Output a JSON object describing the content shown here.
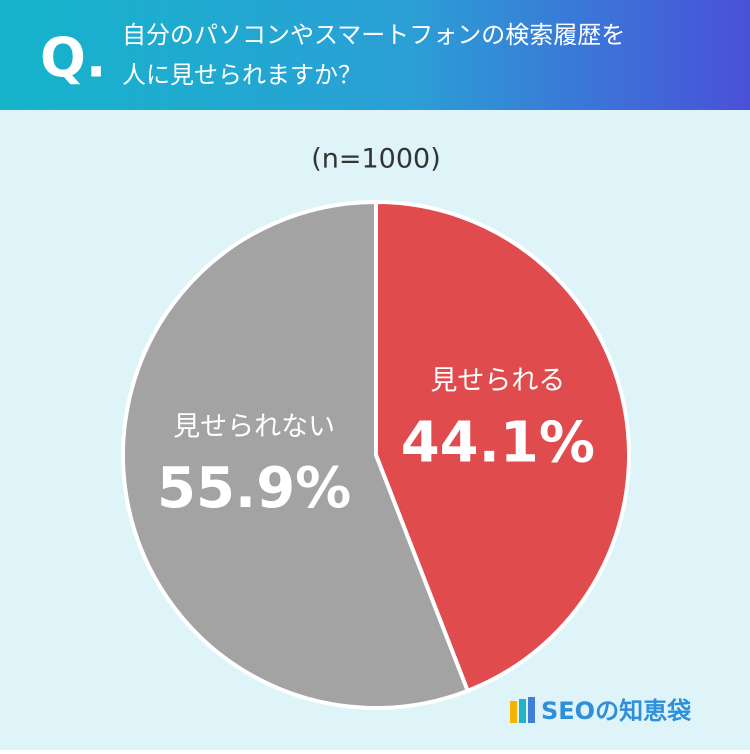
{
  "q_label": "Q.",
  "brand": "SEOの知恵袋",
  "chart_data": {
    "type": "pie",
    "title": [
      "自分のパソコンやスマートフォンの検索履歴を",
      "人に見せられますか？"
    ],
    "subtitle": "(n=1000)",
    "categories": [
      "見せられる",
      "見せられない"
    ],
    "values": [
      44.1,
      55.9
    ],
    "value_labels": [
      "44.1%",
      "55.9%"
    ],
    "colors": [
      "#e04b4d",
      "#a3a3a3"
    ]
  }
}
